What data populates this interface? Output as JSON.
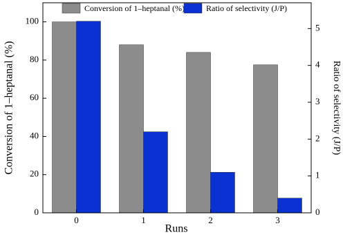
{
  "chart_data": {
    "type": "bar",
    "categories": [
      "0",
      "1",
      "2",
      "3"
    ],
    "xlabel": "Runs",
    "ylabel": "Conversion of 1–heptanal (%)",
    "y2label": "Ratio of selectivity (J/P)",
    "series": [
      {
        "name": "Conversion of 1–heptanal (%)",
        "color": "#8c8c8c",
        "values": [
          100,
          88,
          84,
          77.5
        ]
      },
      {
        "name": "Ratio of selectivity (J/P)",
        "color": "#0a32d2",
        "values": [
          5.2,
          2.2,
          1.1,
          0.4
        ],
        "axis": "y2"
      }
    ],
    "ylim": [
      0,
      110
    ],
    "yticks": [
      0,
      20,
      40,
      60,
      80,
      100
    ],
    "y2lim": [
      0,
      5.7
    ],
    "y2ticks": [
      0,
      1,
      2,
      3,
      4,
      5
    ]
  }
}
